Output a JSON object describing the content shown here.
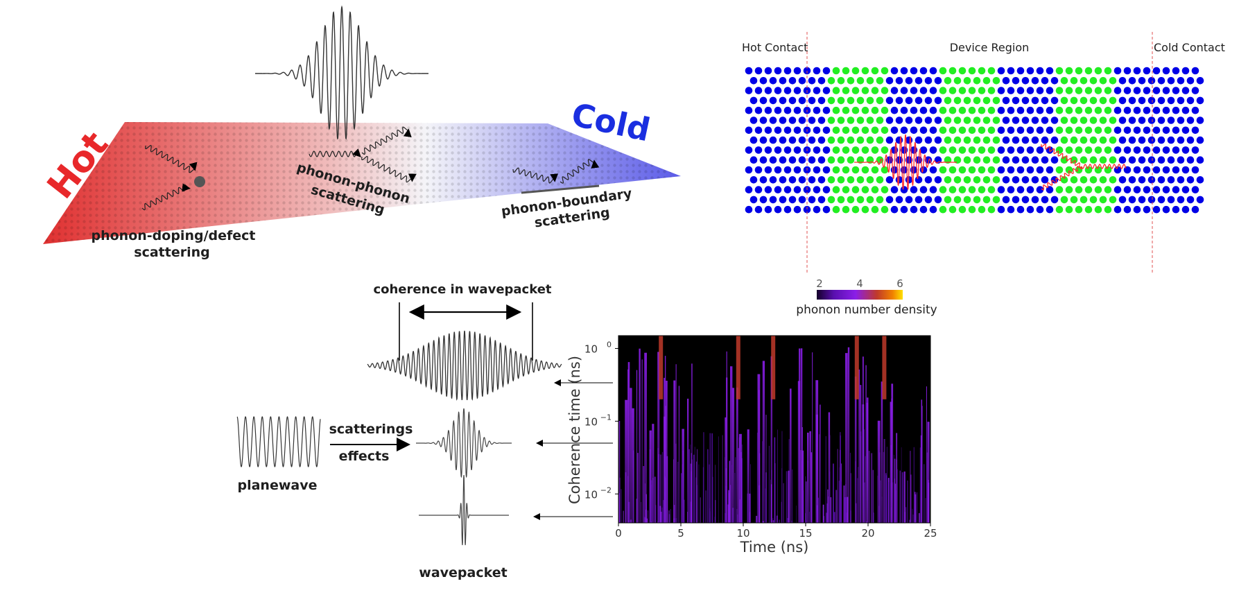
{
  "panel_a": {
    "hot_label": "Hot",
    "cold_label": "Cold",
    "doping_label_1": "phonon-doping/defect",
    "doping_label_2": "scattering",
    "pp_label_1": "phonon-phonon",
    "pp_label_2": "scattering",
    "boundary_label_1": "phonon-boundary",
    "boundary_label_2": "scattering",
    "colors": {
      "hot": "#e8282a",
      "cold": "#1a2ee0"
    }
  },
  "panel_b": {
    "hot_contact": "Hot Contact",
    "device_region": "Device Region",
    "cold_contact": "Cold Contact",
    "colorbar_ticks": [
      "2",
      "4",
      "6"
    ],
    "colorbar_label": "phonon number density",
    "colors": {
      "contact_atom": "#0000e6",
      "device_atom_green": "#22ee22",
      "wave": "#ff2a2a"
    }
  },
  "panel_c": {
    "coherence_label": "coherence in wavepacket",
    "scatterings_label": "scatterings",
    "effects_label": "effects",
    "planewave_label": "planewave",
    "wavepacket_label": "wavepacket"
  },
  "chart_data": {
    "type": "heatmap",
    "xlabel": "Time (ns)",
    "ylabel": "Coherence time (ns)",
    "x_ticks": [
      "0",
      "5",
      "10",
      "15",
      "20",
      "25"
    ],
    "xlim": [
      0,
      25
    ],
    "y_scale": "log",
    "ylim": [
      0.004,
      1.5
    ],
    "y_ticks": [
      {
        "base": "10",
        "exp": "0"
      },
      {
        "base": "10",
        "exp": "−1"
      },
      {
        "base": "10",
        "exp": "−2"
      }
    ],
    "colormap": [
      "#000000",
      "#5a0fb0",
      "#8a1ee8",
      "#c03a2a",
      "#f0a000"
    ],
    "bright_columns_ns": [
      3.4,
      9.6,
      12.4,
      19.1,
      21.3
    ]
  }
}
